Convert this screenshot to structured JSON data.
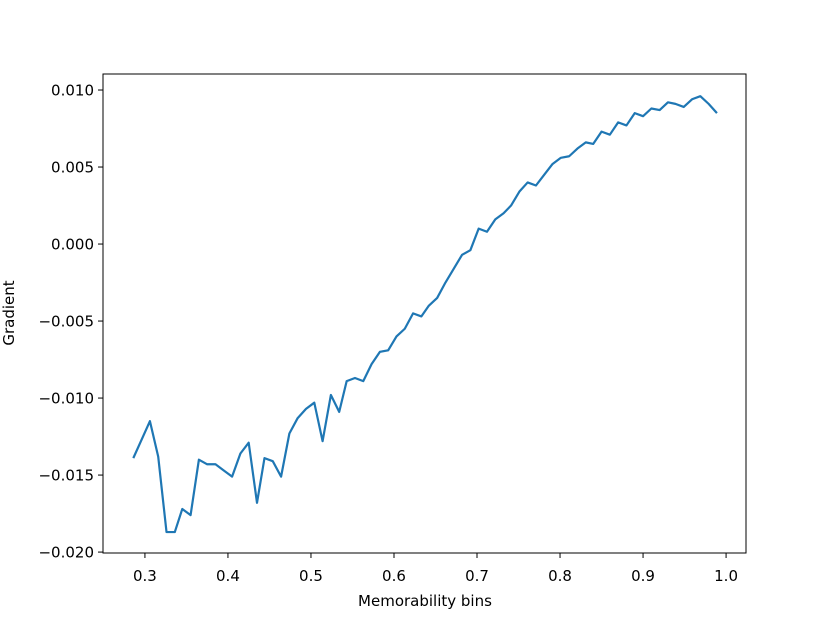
{
  "chart_data": {
    "type": "line",
    "xlabel": "Memorability bins",
    "ylabel": "Gradient",
    "color": "#1f77b4",
    "x": [
      0.286,
      0.296,
      0.306,
      0.316,
      0.326,
      0.336,
      0.345,
      0.355,
      0.365,
      0.375,
      0.385,
      0.395,
      0.405,
      0.415,
      0.425,
      0.435,
      0.444,
      0.454,
      0.464,
      0.474,
      0.484,
      0.494,
      0.504,
      0.514,
      0.524,
      0.534,
      0.543,
      0.553,
      0.563,
      0.573,
      0.583,
      0.593,
      0.603,
      0.613,
      0.623,
      0.633,
      0.642,
      0.652,
      0.662,
      0.672,
      0.682,
      0.692,
      0.702,
      0.712,
      0.722,
      0.732,
      0.741,
      0.751,
      0.761,
      0.771,
      0.781,
      0.791,
      0.801,
      0.811,
      0.821,
      0.831,
      0.84,
      0.85,
      0.86,
      0.87,
      0.88,
      0.89,
      0.9,
      0.91,
      0.92,
      0.93,
      0.939,
      0.949,
      0.959,
      0.969,
      0.979,
      0.989
    ],
    "values": [
      -0.0139,
      -0.0127,
      -0.0115,
      -0.0138,
      -0.0187,
      -0.0187,
      -0.0172,
      -0.0176,
      -0.014,
      -0.0143,
      -0.0143,
      -0.0147,
      -0.0151,
      -0.0136,
      -0.0129,
      -0.0168,
      -0.0139,
      -0.0141,
      -0.0151,
      -0.0123,
      -0.0113,
      -0.0107,
      -0.0103,
      -0.0128,
      -0.0098,
      -0.0109,
      -0.0089,
      -0.0087,
      -0.0089,
      -0.0078,
      -0.007,
      -0.0069,
      -0.006,
      -0.0055,
      -0.0045,
      -0.0047,
      -0.004,
      -0.0035,
      -0.0025,
      -0.0016,
      -0.0007,
      -0.0004,
      0.001,
      0.0008,
      0.0016,
      0.002,
      0.0025,
      0.0034,
      0.004,
      0.0038,
      0.0045,
      0.0052,
      0.0056,
      0.0057,
      0.0062,
      0.0066,
      0.0065,
      0.0073,
      0.0071,
      0.0079,
      0.0077,
      0.0085,
      0.0083,
      0.0088,
      0.0087,
      0.0092,
      0.0091,
      0.0089,
      0.0094,
      0.0096,
      0.0091,
      0.0085
    ],
    "xlim": [
      0.2495,
      1.024
    ],
    "ylim": [
      -0.02006,
      0.01104
    ],
    "xticks": [
      0.3,
      0.4,
      0.5,
      0.6,
      0.7,
      0.8,
      0.9,
      {
        "value": 1,
        "label": "1.0"
      }
    ],
    "yticks": [
      {
        "value": -0.02,
        "label": "−0.020"
      },
      {
        "value": -0.015,
        "label": "−0.015"
      },
      {
        "value": -0.01,
        "label": "−0.010"
      },
      {
        "value": -0.005,
        "label": "−0.005"
      },
      {
        "value": 0,
        "label": "0.000"
      },
      {
        "value": 0.005,
        "label": "0.005"
      },
      {
        "value": 0.01,
        "label": "0.010"
      }
    ]
  }
}
